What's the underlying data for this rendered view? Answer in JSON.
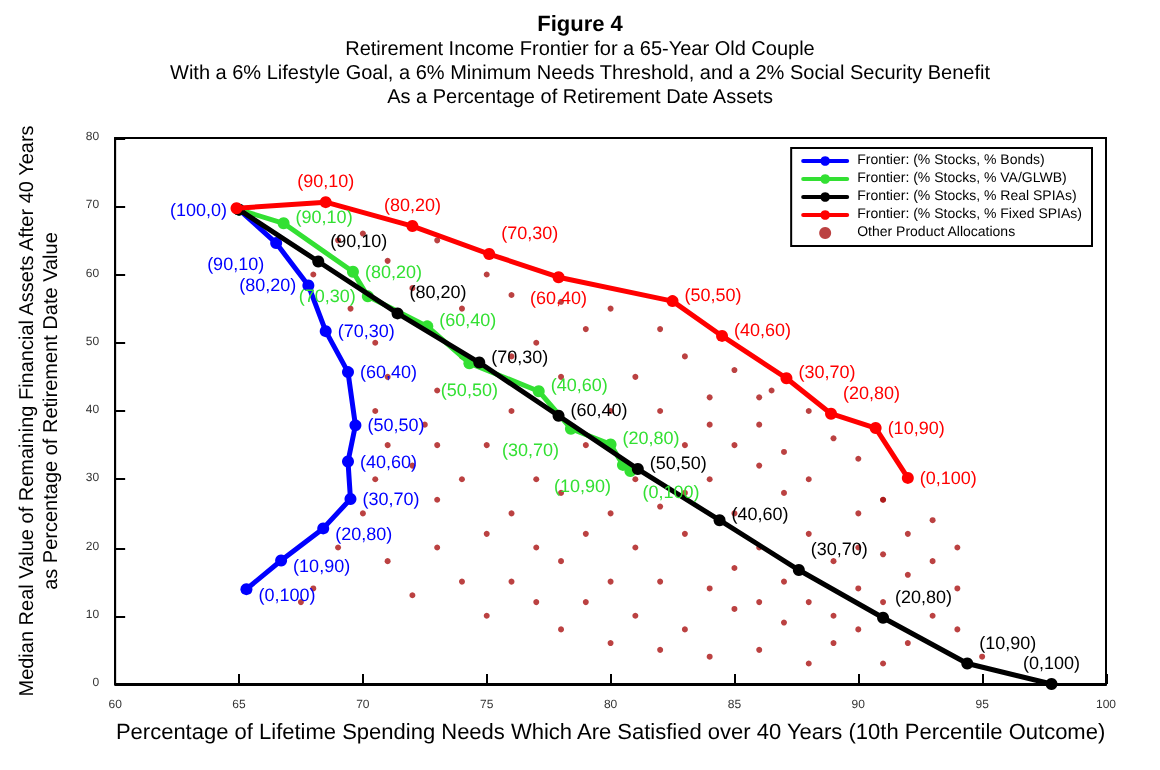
{
  "chart_data": {
    "type": "line",
    "title": "Figure 4",
    "subtitle": "Retirement Income Frontier for a 65-Year Old Couple\nWith a 6% Lifestyle Goal, a 6% Minimum Needs Threshold, and a 2% Social Security Benefit\nAs a Percentage of Retirement Date Assets",
    "xlabel": "Percentage of Lifetime Spending Needs Which Are Satisfied over 40 Years (10th Percentile Outcome)",
    "ylabel": "Median Real Value of Remaining Financial Assets After 40 Years\nas Percentage of Retirement Date Value",
    "xlim": [
      60,
      100
    ],
    "xticks": [
      60,
      65,
      70,
      75,
      80,
      85,
      90,
      95,
      100
    ],
    "ylim": [
      0,
      80
    ],
    "yticks": [
      0,
      10,
      20,
      30,
      40,
      50,
      60,
      70,
      80
    ],
    "grid": false,
    "legend": "top right",
    "marker": "circle",
    "line_style": "solid",
    "series": [
      {
        "name": "Frontier: (% Stocks, % Bonds)",
        "color": "#0000ff",
        "x": [
          65,
          66.5,
          67.8,
          68.5,
          69.4,
          69.7,
          69.4,
          69.5,
          68.4,
          66.7,
          65.3
        ],
        "values": [
          69.5,
          64.6,
          58.4,
          51.7,
          45.7,
          37.9,
          32.6,
          27.1,
          22.8,
          18.1,
          13.9
        ]
      },
      {
        "name": "Frontier: (% Stocks, % VA/GLWB)",
        "color": "#33e033",
        "x": [
          65,
          66.8,
          69.6,
          70.2,
          72.6,
          74.3,
          77.1,
          78.4,
          80,
          80.5,
          80.8
        ],
        "values": [
          69.5,
          67.5,
          60.4,
          56.8,
          52.4,
          47,
          42.9,
          37.4,
          35.1,
          32.1,
          31.2
        ]
      },
      {
        "name": "Frontier: (% Stocks, % Real SPIAs)",
        "color": "#000000",
        "x": [
          65,
          68.2,
          71.4,
          74.7,
          77.9,
          81.1,
          84.4,
          87.6,
          91,
          94.4,
          97.8
        ],
        "values": [
          69.5,
          61.9,
          54.3,
          47.1,
          39.3,
          31.5,
          24,
          16.7,
          9.7,
          3,
          0
        ]
      },
      {
        "name": "Frontier: (% Stocks, % Fixed SPIAs)",
        "color": "#ff0000",
        "x": [
          64.9,
          68.5,
          72,
          75.1,
          77.9,
          82.5,
          84.5,
          87.1,
          88.9,
          90.7,
          92
        ],
        "values": [
          69.7,
          70.6,
          67.1,
          63,
          59.6,
          56.1,
          51,
          44.8,
          39.6,
          37.5,
          30.2
        ]
      },
      {
        "name": "Other Product Allocations",
        "type": "scatter",
        "color": "#aa1111",
        "x": [
          70,
          73,
          75,
          76,
          78,
          80,
          79,
          82,
          83,
          85,
          86,
          88,
          89,
          90,
          91,
          87,
          84,
          81,
          77,
          74,
          72,
          71,
          69,
          68,
          69.5,
          70.5,
          71,
          70.5,
          71,
          70.5,
          70,
          69,
          68,
          67.5,
          71,
          72,
          73,
          73,
          72,
          72.5,
          73,
          74,
          75,
          76,
          77,
          78,
          79,
          80,
          81,
          82,
          83,
          84,
          85,
          86,
          87,
          88,
          89,
          90,
          91,
          92,
          93,
          94,
          92,
          93,
          95,
          91,
          76,
          77,
          78,
          79,
          80,
          81,
          82,
          83,
          84,
          85,
          86,
          87,
          88,
          89,
          85,
          83,
          80,
          78,
          76,
          75,
          74,
          73,
          82,
          84,
          86,
          88,
          90,
          76,
          79,
          81,
          83,
          85,
          87,
          80,
          78,
          75,
          77,
          74,
          82,
          84,
          88,
          89,
          90,
          91,
          92,
          93,
          94,
          94,
          90,
          86,
          86.5,
          91,
          86
        ],
        "values": [
          66,
          65,
          60,
          57,
          56,
          55,
          52,
          52,
          48,
          46,
          42,
          40,
          36,
          33,
          27,
          34,
          42,
          45,
          50,
          55,
          58,
          62,
          65,
          60,
          55,
          50,
          45,
          40,
          35,
          30,
          25,
          20,
          14,
          12,
          18,
          13,
          20,
          27,
          32,
          38,
          43,
          48,
          10,
          15,
          20,
          8,
          12,
          6,
          10,
          15,
          8,
          14,
          11,
          5,
          9,
          12,
          6,
          14,
          19,
          6,
          10,
          8,
          22,
          24,
          4,
          3,
          25,
          30,
          28,
          22,
          25,
          20,
          26,
          22,
          30,
          25,
          20,
          28,
          22,
          18,
          35,
          35,
          40,
          45,
          40,
          35,
          30,
          35,
          40,
          38,
          32,
          30,
          25,
          48,
          35,
          30,
          28,
          17,
          15,
          15,
          18,
          22,
          12,
          15,
          5,
          4,
          3,
          10,
          8,
          12,
          16,
          18,
          14,
          20,
          20,
          38,
          43,
          27,
          12
        ]
      }
    ],
    "annotations": [
      {
        "text": "(100,0)",
        "x": 65,
        "y": 69.5
      },
      {
        "text": "(90,10)",
        "x": 66.5,
        "y": 64.6
      },
      {
        "text": "(80,20)",
        "x": 67.8,
        "y": 58.4
      },
      {
        "text": "(70,30)",
        "x": 68.5,
        "y": 51.7
      },
      {
        "text": "(60,40)",
        "x": 69.4,
        "y": 45.7
      },
      {
        "text": "(50,50)",
        "x": 69.7,
        "y": 37.9
      },
      {
        "text": "(40,60)",
        "x": 69.4,
        "y": 32.6
      },
      {
        "text": "(30,70)",
        "x": 69.5,
        "y": 27.1
      },
      {
        "text": "(20,80)",
        "x": 68.4,
        "y": 22.8
      },
      {
        "text": "(10,90)",
        "x": 66.7,
        "y": 18.1
      },
      {
        "text": "(0,100)",
        "x": 65.3,
        "y": 13.9
      },
      {
        "text": "(90,10)",
        "x": 68.5,
        "y": 70.6
      },
      {
        "text": "(80,20)",
        "x": 72,
        "y": 67.1
      },
      {
        "text": "(70,30)",
        "x": 75.1,
        "y": 63
      },
      {
        "text": "(60,40)",
        "x": 77.9,
        "y": 59.6
      },
      {
        "text": "(50,50)",
        "x": 82.5,
        "y": 56.1
      },
      {
        "text": "(40,60)",
        "x": 84.5,
        "y": 51
      },
      {
        "text": "(30,70)",
        "x": 87.1,
        "y": 44.8
      },
      {
        "text": "(20,80)",
        "x": 88.9,
        "y": 39.6
      },
      {
        "text": "(10,90)",
        "x": 90.7,
        "y": 37.5
      },
      {
        "text": "(0,100)",
        "x": 92,
        "y": 30.2
      },
      {
        "text": "(90,10)",
        "x": 68.2,
        "y": 61.9
      },
      {
        "text": "(80,20)",
        "x": 71.4,
        "y": 54.3
      },
      {
        "text": "(70,30)",
        "x": 74.7,
        "y": 47.1
      },
      {
        "text": "(60,40)",
        "x": 77.9,
        "y": 39.3
      },
      {
        "text": "(50,50)",
        "x": 81.1,
        "y": 31.5
      },
      {
        "text": "(40,60)",
        "x": 84.4,
        "y": 24
      },
      {
        "text": "(30,70)",
        "x": 87.6,
        "y": 16.7
      },
      {
        "text": "(20,80)",
        "x": 91,
        "y": 9.7
      },
      {
        "text": "(10,90)",
        "x": 94.4,
        "y": 3
      },
      {
        "text": "(0,100)",
        "x": 97.8,
        "y": 0
      },
      {
        "text": "(90,10)",
        "x": 66.8,
        "y": 67.5
      },
      {
        "text": "(80,20)",
        "x": 69.6,
        "y": 60.4
      },
      {
        "text": "(70,30)",
        "x": 70.2,
        "y": 56.8
      },
      {
        "text": "(60,40)",
        "x": 72.6,
        "y": 52.4
      },
      {
        "text": "(50,50)",
        "x": 74.3,
        "y": 47
      },
      {
        "text": "(40,60)",
        "x": 77.1,
        "y": 42.9
      },
      {
        "text": "(30,70)",
        "x": 78.4,
        "y": 37.4
      },
      {
        "text": "(20,80)",
        "x": 80,
        "y": 35.1
      },
      {
        "text": "(10,90)",
        "x": 80.5,
        "y": 32.1
      },
      {
        "text": "(0,100)",
        "x": 80.8,
        "y": 31.2
      }
    ]
  }
}
